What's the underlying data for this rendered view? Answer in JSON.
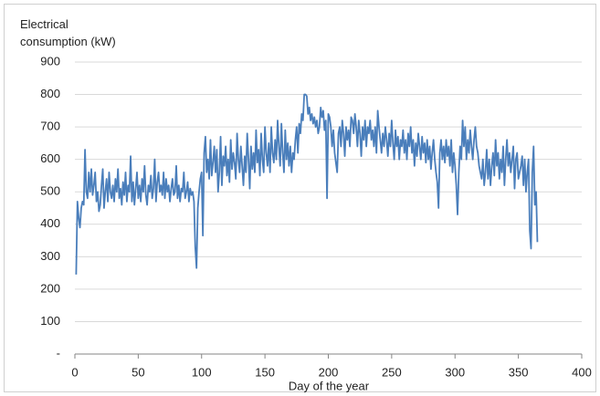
{
  "chart_data": {
    "type": "line",
    "y_label": "Electrical consumption (kW)",
    "x_label": "Day of the year",
    "color": "#4a7ebb",
    "grid": true,
    "xlim": [
      0,
      400
    ],
    "xticks": [
      0,
      50,
      100,
      150,
      200,
      250,
      300,
      350,
      400
    ],
    "ylim": [
      0,
      900
    ],
    "yticks": [
      {
        "value": 0,
        "label": "-"
      },
      100,
      200,
      300,
      400,
      500,
      600,
      700,
      800,
      900
    ],
    "x": [
      1,
      2,
      3,
      4,
      5,
      6,
      7,
      8,
      9,
      10,
      11,
      12,
      13,
      14,
      15,
      16,
      17,
      18,
      19,
      20,
      21,
      22,
      23,
      24,
      25,
      26,
      27,
      28,
      29,
      30,
      31,
      32,
      33,
      34,
      35,
      36,
      37,
      38,
      39,
      40,
      41,
      42,
      43,
      44,
      45,
      46,
      47,
      48,
      49,
      50,
      51,
      52,
      53,
      54,
      55,
      56,
      57,
      58,
      59,
      60,
      61,
      62,
      63,
      64,
      65,
      66,
      67,
      68,
      69,
      70,
      71,
      72,
      73,
      74,
      75,
      76,
      77,
      78,
      79,
      80,
      81,
      82,
      83,
      84,
      85,
      86,
      87,
      88,
      89,
      90,
      91,
      92,
      93,
      94,
      95,
      96,
      97,
      98,
      99,
      100,
      101,
      102,
      103,
      104,
      105,
      106,
      107,
      108,
      109,
      110,
      111,
      112,
      113,
      114,
      115,
      116,
      117,
      118,
      119,
      120,
      121,
      122,
      123,
      124,
      125,
      126,
      127,
      128,
      129,
      130,
      131,
      132,
      133,
      134,
      135,
      136,
      137,
      138,
      139,
      140,
      141,
      142,
      143,
      144,
      145,
      146,
      147,
      148,
      149,
      150,
      151,
      152,
      153,
      154,
      155,
      156,
      157,
      158,
      159,
      160,
      161,
      162,
      163,
      164,
      165,
      166,
      167,
      168,
      169,
      170,
      171,
      172,
      173,
      174,
      175,
      176,
      177,
      178,
      179,
      180,
      181,
      182,
      183,
      184,
      185,
      186,
      187,
      188,
      189,
      190,
      191,
      192,
      193,
      194,
      195,
      196,
      197,
      198,
      199,
      200,
      201,
      202,
      203,
      204,
      205,
      206,
      207,
      208,
      209,
      210,
      211,
      212,
      213,
      214,
      215,
      216,
      217,
      218,
      219,
      220,
      221,
      222,
      223,
      224,
      225,
      226,
      227,
      228,
      229,
      230,
      231,
      232,
      233,
      234,
      235,
      236,
      237,
      238,
      239,
      240,
      241,
      242,
      243,
      244,
      245,
      246,
      247,
      248,
      249,
      250,
      251,
      252,
      253,
      254,
      255,
      256,
      257,
      258,
      259,
      260,
      261,
      262,
      263,
      264,
      265,
      266,
      267,
      268,
      269,
      270,
      271,
      272,
      273,
      274,
      275,
      276,
      277,
      278,
      279,
      280,
      281,
      282,
      283,
      284,
      285,
      286,
      287,
      288,
      289,
      290,
      291,
      292,
      293,
      294,
      295,
      296,
      297,
      298,
      299,
      300,
      301,
      302,
      303,
      304,
      305,
      306,
      307,
      308,
      309,
      310,
      311,
      312,
      313,
      314,
      315,
      316,
      317,
      318,
      319,
      320,
      321,
      322,
      323,
      324,
      325,
      326,
      327,
      328,
      329,
      330,
      331,
      332,
      333,
      334,
      335,
      336,
      337,
      338,
      339,
      340,
      341,
      342,
      343,
      344,
      345,
      346,
      347,
      348,
      349,
      350,
      351,
      352,
      353,
      354,
      355,
      356,
      357,
      358,
      359,
      360,
      361,
      362,
      363,
      364,
      365
    ],
    "values": [
      245,
      470,
      420,
      390,
      450,
      470,
      460,
      630,
      500,
      480,
      560,
      500,
      570,
      490,
      520,
      560,
      470,
      500,
      440,
      460,
      520,
      570,
      450,
      500,
      540,
      470,
      560,
      500,
      480,
      520,
      470,
      540,
      500,
      570,
      480,
      510,
      460,
      530,
      490,
      560,
      470,
      520,
      500,
      610,
      470,
      530,
      460,
      510,
      560,
      480,
      520,
      470,
      540,
      500,
      580,
      490,
      460,
      520,
      500,
      550,
      480,
      510,
      600,
      470,
      530,
      560,
      500,
      520,
      490,
      560,
      480,
      540,
      500,
      520,
      470,
      510,
      540,
      490,
      500,
      580,
      480,
      520,
      470,
      510,
      500,
      560,
      480,
      500,
      530,
      470,
      510,
      490,
      500,
      470,
      330,
      265,
      450,
      500,
      540,
      560,
      365,
      620,
      670,
      560,
      600,
      540,
      660,
      550,
      590,
      640,
      560,
      630,
      500,
      560,
      670,
      520,
      610,
      580,
      640,
      550,
      600,
      530,
      660,
      570,
      620,
      590,
      540,
      680,
      600,
      560,
      640,
      580,
      520,
      610,
      560,
      680,
      600,
      510,
      640,
      570,
      620,
      560,
      690,
      590,
      630,
      550,
      680,
      600,
      560,
      700,
      620,
      580,
      650,
      560,
      700,
      620,
      590,
      660,
      600,
      720,
      640,
      580,
      710,
      620,
      560,
      690,
      600,
      650,
      580,
      640,
      560,
      620,
      600,
      660,
      700,
      620,
      710,
      680,
      740,
      720,
      800,
      800,
      795,
      740,
      760,
      720,
      740,
      710,
      730,
      700,
      720,
      680,
      700,
      760,
      730,
      750,
      690,
      720,
      480,
      740,
      730,
      700,
      640,
      690,
      620,
      590,
      560,
      680,
      700,
      640,
      720,
      680,
      610,
      700,
      660,
      690,
      640,
      730,
      720,
      680,
      740,
      700,
      640,
      720,
      680,
      610,
      700,
      660,
      720,
      640,
      700,
      680,
      720,
      660,
      690,
      640,
      700,
      620,
      750,
      700,
      660,
      620,
      680,
      640,
      700,
      660,
      610,
      680,
      640,
      720,
      650,
      600,
      690,
      640,
      670,
      600,
      660,
      640,
      690,
      620,
      660,
      600,
      680,
      640,
      700,
      620,
      660,
      580,
      650,
      610,
      680,
      640,
      600,
      670,
      620,
      650,
      590,
      660,
      600,
      640,
      570,
      620,
      660,
      600,
      560,
      530,
      450,
      620,
      660,
      600,
      640,
      590,
      660,
      610,
      640,
      580,
      660,
      560,
      620,
      580,
      520,
      430,
      560,
      640,
      600,
      720,
      640,
      700,
      600,
      660,
      620,
      690,
      640,
      600,
      660,
      700,
      640,
      620,
      580,
      560,
      540,
      600,
      520,
      560,
      630,
      540,
      600,
      520,
      580,
      620,
      550,
      660,
      580,
      620,
      540,
      600,
      560,
      640,
      520,
      600,
      660,
      580,
      620,
      560,
      600,
      640,
      510,
      600,
      620,
      540,
      560,
      580,
      610,
      520,
      600,
      500,
      560,
      600,
      380,
      325,
      560,
      640,
      460,
      500,
      345
    ]
  }
}
